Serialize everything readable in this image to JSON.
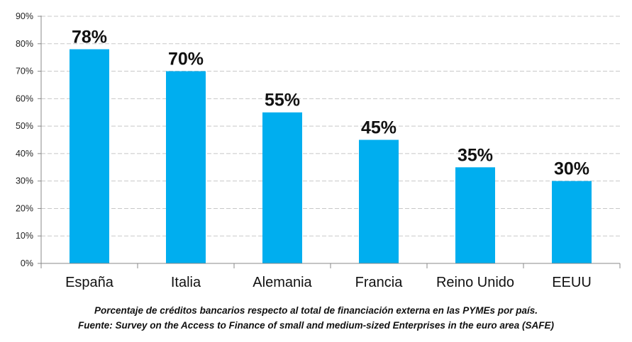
{
  "chart_data": {
    "type": "bar",
    "categories": [
      "España",
      "Italia",
      "Alemania",
      "Francia",
      "Reino Unido",
      "EEUU"
    ],
    "values": [
      78,
      70,
      55,
      45,
      35,
      30
    ],
    "data_labels": [
      "78%",
      "70%",
      "55%",
      "45%",
      "35%",
      "30%"
    ],
    "yticks": [
      "0%",
      "10%",
      "20%",
      "30%",
      "40%",
      "50%",
      "60%",
      "70%",
      "80%",
      "90%"
    ],
    "ylim": [
      0,
      90
    ],
    "grid": true,
    "bar_color": "#00AEEF",
    "title": "",
    "xlabel": "",
    "ylabel": ""
  },
  "caption": {
    "line1": "Porcentaje de créditos bancarios respecto al total de financiación externa en las PYMEs por país.",
    "line2": "Fuente: Survey on the Access to Finance of small and medium-sized Enterprises in the euro area (SAFE)"
  }
}
